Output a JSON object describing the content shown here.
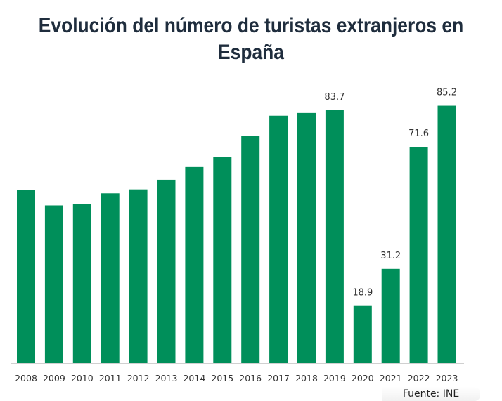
{
  "chart_data": {
    "type": "bar",
    "title": "Evolución del número de turistas extranjeros en España",
    "xlabel": "",
    "ylabel": "",
    "categories": [
      "2008",
      "2009",
      "2010",
      "2011",
      "2012",
      "2013",
      "2014",
      "2015",
      "2016",
      "2017",
      "2018",
      "2019",
      "2020",
      "2021",
      "2022",
      "2023"
    ],
    "values": [
      57.2,
      52.2,
      52.7,
      56.2,
      57.5,
      60.7,
      64.9,
      68.2,
      75.3,
      81.9,
      82.8,
      83.7,
      18.9,
      31.2,
      71.6,
      85.2
    ],
    "data_labels": {
      "2019": "83.7",
      "2020": "18.9",
      "2021": "31.2",
      "2022": "71.6",
      "2023": "85.2"
    },
    "ylim": [
      0,
      90
    ],
    "grid": false,
    "bar_color": "#008f5a",
    "source": "Fuente: INE"
  }
}
